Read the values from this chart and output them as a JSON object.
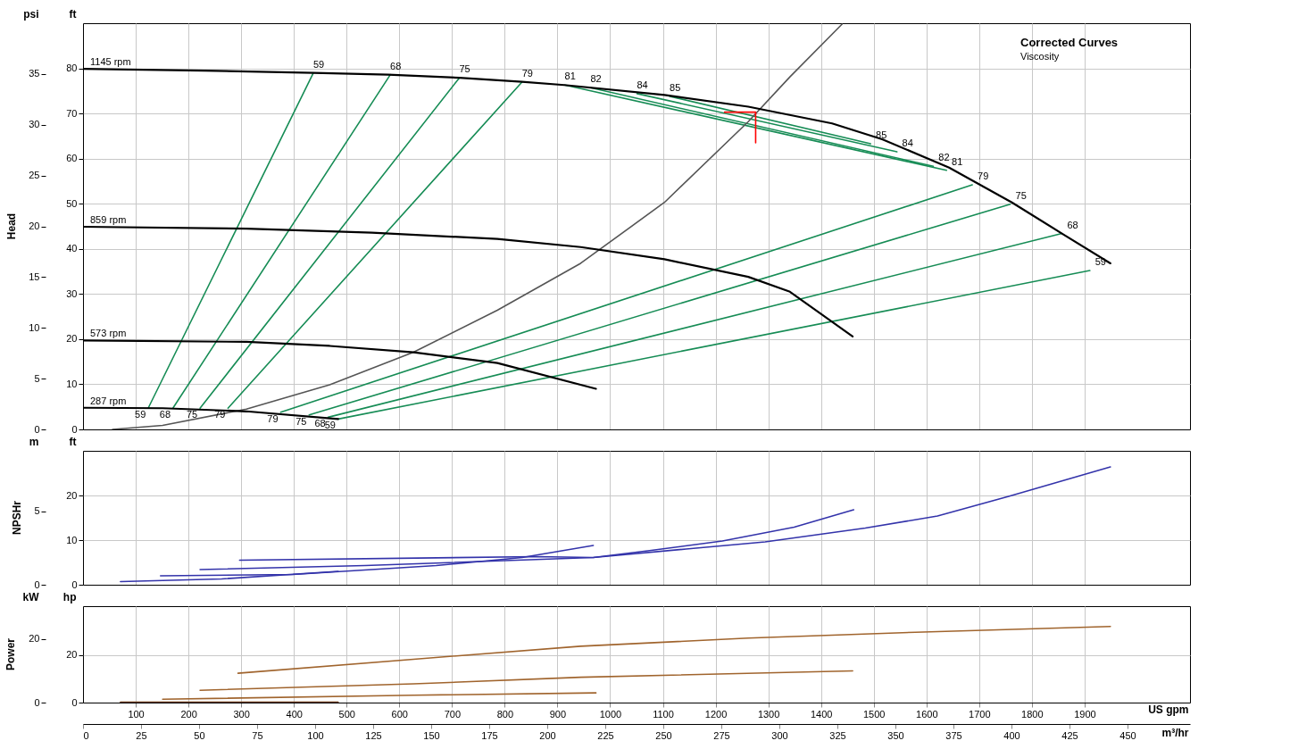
{
  "chart_data": [
    {
      "type": "line",
      "title": "Head",
      "ylabel": "ft",
      "y2label": "psi",
      "xlim": [
        0,
        2100
      ],
      "xticks": [
        100,
        200,
        300,
        400,
        500,
        600,
        700,
        800,
        900,
        1000,
        1100,
        1200,
        1300,
        1400,
        1500,
        1600,
        1700,
        1800,
        1900
      ],
      "ylim": [
        0,
        90
      ],
      "yticks": [
        0,
        10,
        20,
        30,
        40,
        50,
        60,
        70,
        80
      ],
      "y2lim": [
        0,
        40
      ],
      "y2ticks": [
        0,
        5,
        10,
        15,
        20,
        25,
        30,
        35
      ],
      "grid": true,
      "tick_labels": "y",
      "series": [
        {
          "color": "#168c55",
          "x": [
            124,
            437
          ],
          "values": [
            4.8,
            79.0
          ]
        },
        {
          "color": "#168c55",
          "x": [
            171,
            583
          ],
          "values": [
            4.8,
            78.6
          ]
        },
        {
          "color": "#168c55",
          "x": [
            222,
            714
          ],
          "values": [
            4.7,
            77.9
          ]
        },
        {
          "color": "#168c55",
          "x": [
            275,
            833
          ],
          "values": [
            4.7,
            77.0
          ]
        },
        {
          "color": "#168c55",
          "x": [
            375,
            1687
          ],
          "values": [
            3.8,
            54.2
          ]
        },
        {
          "color": "#168c55",
          "x": [
            429,
            1759
          ],
          "values": [
            3.2,
            49.9
          ]
        },
        {
          "color": "#168c55",
          "x": [
            465,
            1857
          ],
          "values": [
            2.7,
            43.4
          ]
        },
        {
          "color": "#168c55",
          "x": [
            484,
            1910
          ],
          "values": [
            2.3,
            35.2
          ]
        },
        {
          "color": "#168c55",
          "x": [
            914,
            1638
          ],
          "values": [
            76.3,
            57.4
          ]
        },
        {
          "color": "#168c55",
          "x": [
            963,
            1613
          ],
          "values": [
            75.7,
            58.3
          ]
        },
        {
          "color": "#168c55",
          "x": [
            1051,
            1544
          ],
          "values": [
            74.4,
            61.5
          ]
        },
        {
          "color": "#168c55",
          "x": [
            1113,
            1494
          ],
          "values": [
            73.8,
            63.3
          ]
        },
        {
          "color": "#555555",
          "x": [
            56,
            151,
            310,
            468,
            627,
            786,
            944,
            1103,
            1262,
            1341,
            1440
          ],
          "values": [
            0,
            0.9,
            4.5,
            9.9,
            17.1,
            26.4,
            36.8,
            50.3,
            68.2,
            78.1,
            89.8
          ]
        },
        {
          "name": "1145 rpm",
          "color": "#000000",
          "x": [
            0,
            230,
            437,
            579,
            714,
            833,
            913,
            1103,
            1262,
            1421,
            1516,
            1643,
            1762,
            1857,
            1949
          ],
          "values": [
            79.9,
            79.5,
            79.0,
            78.6,
            77.9,
            77.0,
            76.3,
            74.1,
            71.5,
            67.8,
            64.3,
            58.0,
            50.3,
            43.4,
            36.8
          ]
        },
        {
          "name": "859 rpm",
          "color": "#000000",
          "x": [
            0,
            310,
            548,
            786,
            944,
            1103,
            1262,
            1341,
            1460
          ],
          "values": [
            44.9,
            44.5,
            43.6,
            42.2,
            40.4,
            37.7,
            33.8,
            30.5,
            20.6
          ]
        },
        {
          "name": "573 rpm",
          "color": "#000000",
          "x": [
            0,
            310,
            468,
            627,
            786,
            973
          ],
          "values": [
            19.7,
            19.4,
            18.5,
            17.1,
            14.7,
            9.0
          ]
        },
        {
          "name": "287 rpm",
          "color": "#000000",
          "x": [
            0,
            151,
            310,
            484
          ],
          "values": [
            4.8,
            4.7,
            4.0,
            2.3
          ]
        },
        {
          "color": "#ff0000",
          "x": [
            1217,
            1276,
            1276
          ],
          "values": [
            70.3,
            70.3,
            63.5
          ]
        }
      ],
      "annotations": [
        {
          "text": "59",
          "x": 437,
          "y": 79.0
        },
        {
          "text": "68",
          "x": 583,
          "y": 78.6
        },
        {
          "text": "75",
          "x": 714,
          "y": 77.9
        },
        {
          "text": "79",
          "x": 833,
          "y": 77.0
        },
        {
          "text": "81",
          "x": 914,
          "y": 76.3
        },
        {
          "text": "82",
          "x": 963,
          "y": 75.7
        },
        {
          "text": "84",
          "x": 1051,
          "y": 74.4
        },
        {
          "text": "85",
          "x": 1113,
          "y": 73.8
        },
        {
          "text": "85",
          "x": 1494,
          "y": 63.3
        },
        {
          "text": "84",
          "x": 1544,
          "y": 61.5
        },
        {
          "text": "82",
          "x": 1613,
          "y": 58.3
        },
        {
          "text": "81",
          "x": 1638,
          "y": 57.4
        },
        {
          "text": "79",
          "x": 1687,
          "y": 54.2
        },
        {
          "text": "75",
          "x": 1759,
          "y": 49.9
        },
        {
          "text": "68",
          "x": 1857,
          "y": 43.4
        },
        {
          "text": "59",
          "x": 1910,
          "y": 35.2
        },
        {
          "text": "59",
          "x": 124,
          "y": 4.8
        },
        {
          "text": "68",
          "x": 171,
          "y": 4.8
        },
        {
          "text": "75",
          "x": 222,
          "y": 4.7
        },
        {
          "text": "79",
          "x": 275,
          "y": 4.7
        },
        {
          "text": "79",
          "x": 375,
          "y": 3.8
        },
        {
          "text": "75",
          "x": 429,
          "y": 3.2
        },
        {
          "text": "68",
          "x": 465,
          "y": 2.7
        },
        {
          "text": "59",
          "x": 484,
          "y": 2.3
        },
        "Corrected Curves",
        "Viscosity"
      ]
    },
    {
      "type": "line",
      "title": "NPSHr",
      "ylabel": "ft",
      "y2label": "m",
      "xlim": [
        0,
        2100
      ],
      "xticks": [
        100,
        200,
        300,
        400,
        500,
        600,
        700,
        800,
        900,
        1000,
        1100,
        1200,
        1300,
        1400,
        1500,
        1600,
        1700,
        1800,
        1900
      ],
      "ylim": [
        0,
        30
      ],
      "yticks": [
        0,
        10,
        20
      ],
      "y2lim": [
        0,
        9.14
      ],
      "y2ticks": [
        0,
        5
      ],
      "grid": true,
      "tick_labels": "y",
      "series": [
        {
          "color": "#3333aa",
          "x": [
            297,
            860,
            968,
            1144,
            1294,
            1484,
            1621,
            1756,
            1949
          ],
          "values": [
            5.5,
            6.3,
            6.1,
            8.0,
            9.6,
            12.7,
            15.4,
            19.8,
            26.4
          ]
        },
        {
          "color": "#3333aa",
          "x": [
            222,
            535,
            968,
            1078,
            1213,
            1349,
            1462
          ],
          "values": [
            3.4,
            4.3,
            6.1,
            7.7,
            9.8,
            12.9,
            16.8
          ]
        },
        {
          "color": "#3333aa",
          "x": [
            147,
            398,
            670,
            833,
            968
          ],
          "values": [
            2.0,
            2.3,
            4.3,
            6.1,
            8.8
          ]
        },
        {
          "color": "#3333aa",
          "x": [
            71,
            263,
            484
          ],
          "values": [
            0.7,
            1.3,
            3.0
          ]
        }
      ]
    },
    {
      "type": "line",
      "title": "Power",
      "ylabel": "hp",
      "y2label": "kW",
      "xlabel": "US gpm",
      "x2label": "m³/hr",
      "xlim": [
        0,
        2100
      ],
      "xticks": [
        100,
        200,
        300,
        400,
        500,
        600,
        700,
        800,
        900,
        1000,
        1100,
        1200,
        1300,
        1400,
        1500,
        1600,
        1700,
        1800,
        1900
      ],
      "x2lim": [
        0,
        476.95
      ],
      "x2ticks": [
        0,
        25,
        50,
        75,
        100,
        125,
        150,
        175,
        200,
        225,
        250,
        275,
        300,
        325,
        350,
        375,
        400,
        425,
        450
      ],
      "ylim": [
        0,
        40.7
      ],
      "yticks": [
        0,
        20
      ],
      "y2lim": [
        0,
        30.35
      ],
      "y2ticks": [
        0,
        20
      ],
      "grid": true,
      "series": [
        {
          "color": "#a0642d",
          "x": [
            294,
            627,
            944,
            1262,
            1579,
            1949
          ],
          "values": [
            12.4,
            18.3,
            23.8,
            27.2,
            29.7,
            32.1
          ]
        },
        {
          "color": "#a0642d",
          "x": [
            222,
            627,
            944,
            1460
          ],
          "values": [
            5.2,
            7.9,
            10.7,
            13.4
          ]
        },
        {
          "color": "#a0642d",
          "x": [
            151,
            627,
            973
          ],
          "values": [
            1.4,
            3.1,
            4.1
          ]
        },
        {
          "color": "#6b3a12",
          "x": [
            71,
            484
          ],
          "values": [
            0.2,
            0.2
          ]
        }
      ]
    }
  ]
}
